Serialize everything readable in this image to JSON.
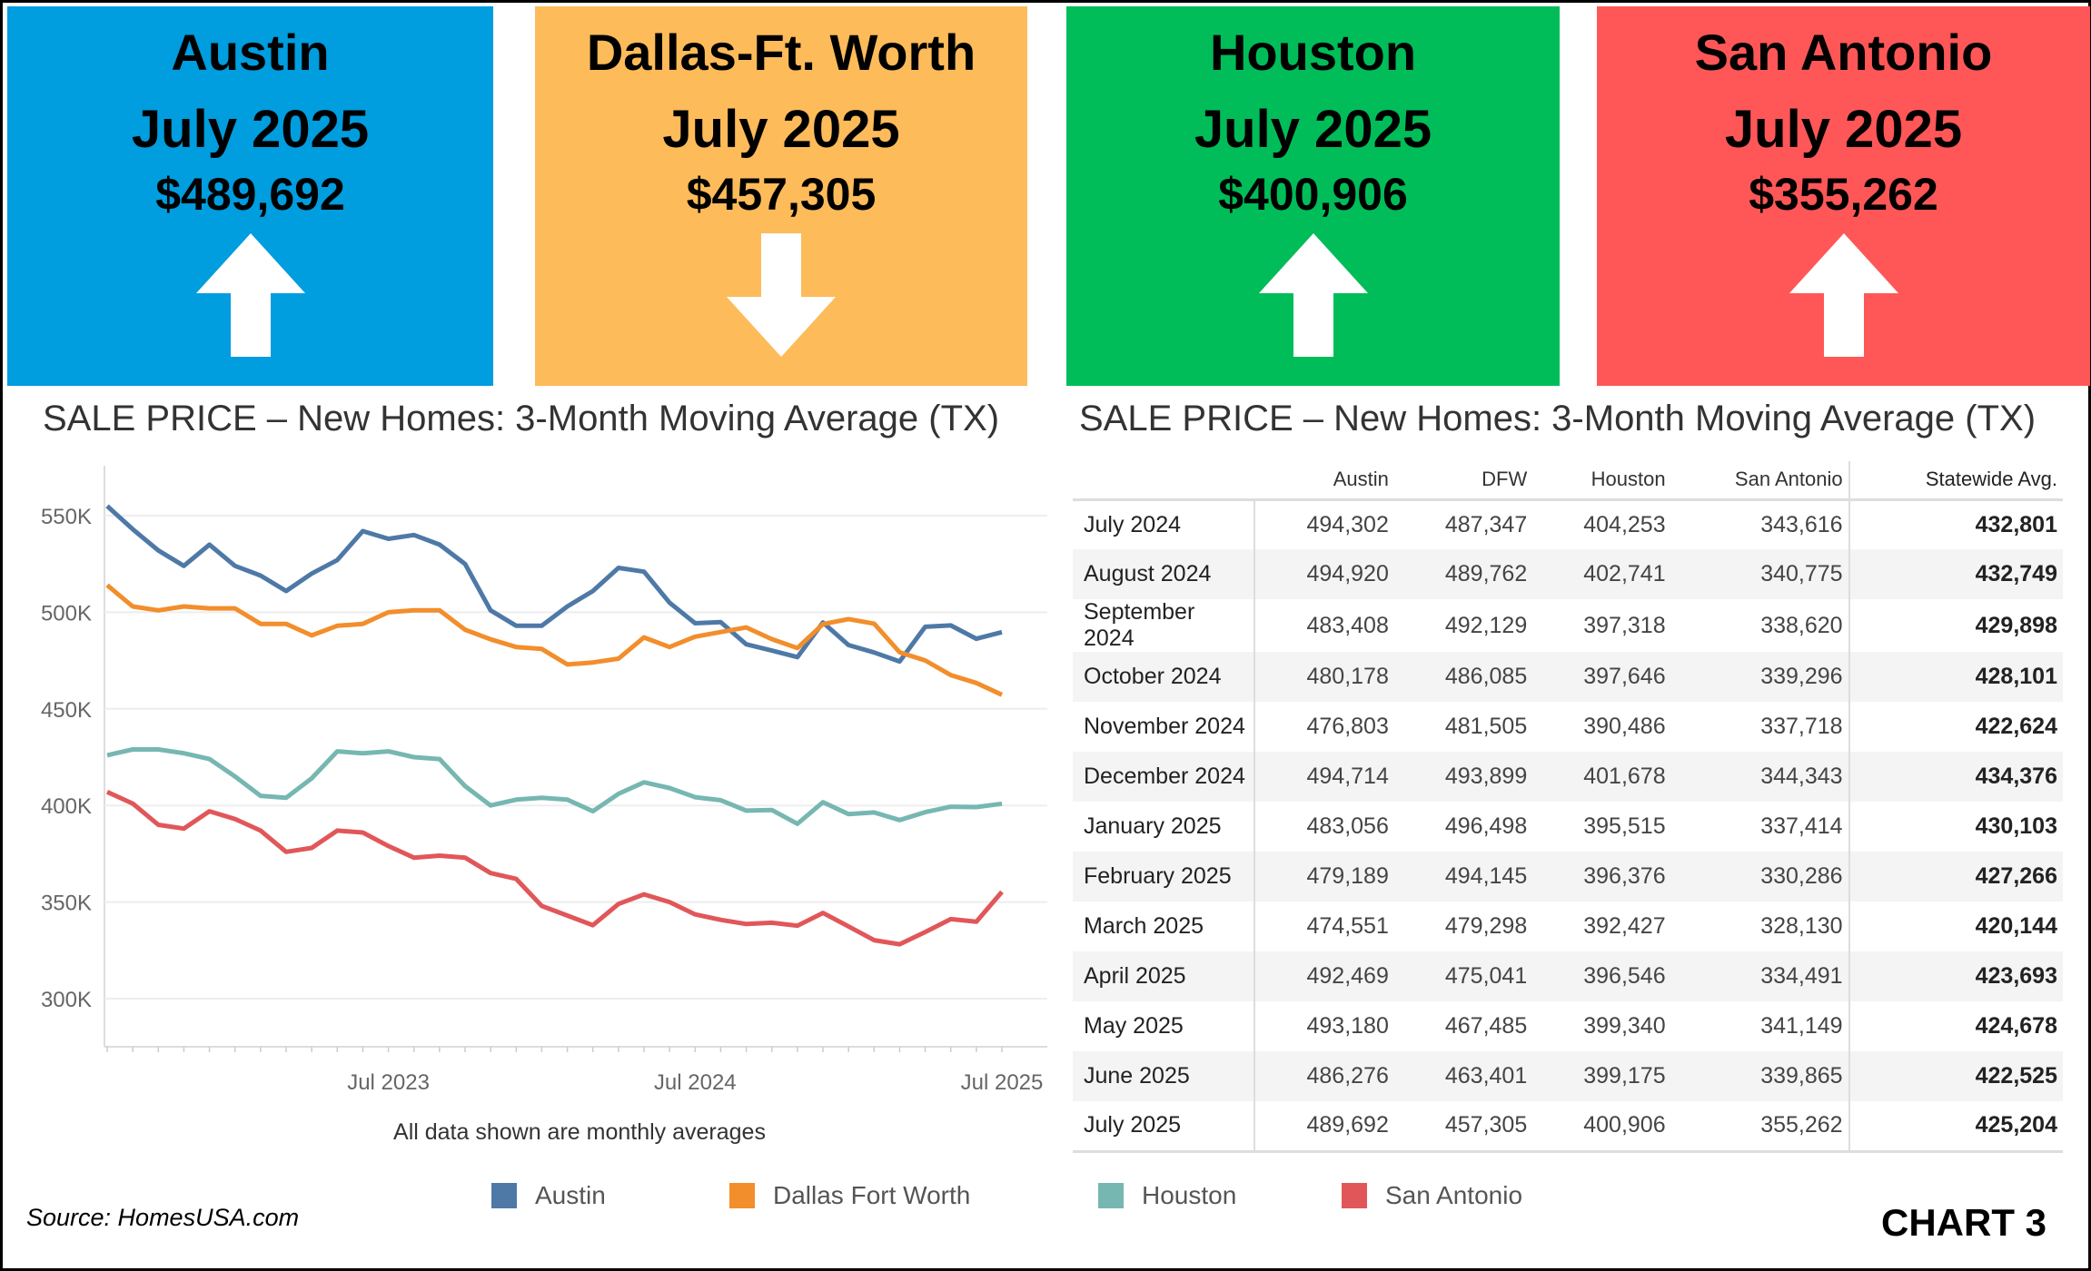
{
  "cards": [
    {
      "city": "Austin",
      "month": "July 2025",
      "price": "$489,692",
      "direction": "up",
      "color": "#009ddf"
    },
    {
      "city": "Dallas-Ft. Worth",
      "month": "July 2025",
      "price": "$457,305",
      "direction": "down",
      "color": "#fdbb5a"
    },
    {
      "city": "Houston",
      "month": "July 2025",
      "price": "$400,906",
      "direction": "up",
      "color": "#00bd59"
    },
    {
      "city": "San Antonio",
      "month": "July 2025",
      "price": "$355,262",
      "direction": "up",
      "color": "#ff5757"
    }
  ],
  "chart_title": "SALE PRICE – New Homes: 3-Month Moving Average (TX)",
  "table_title": "SALE PRICE – New Homes: 3-Month Moving Average (TX)",
  "chart_note": "All data shown are monthly averages",
  "chart_data": {
    "type": "line",
    "x_start": "Aug 2022",
    "x_end": "Jul 2025",
    "x_ticks": [
      "Jul 2023",
      "Jul 2024",
      "Jul 2025"
    ],
    "y_ticks": [
      "550K",
      "500K",
      "450K",
      "400K",
      "350K",
      "300K"
    ],
    "ylim": [
      275000,
      565000
    ],
    "grid": true,
    "legend": "bottom",
    "series": [
      {
        "name": "Austin",
        "color": "#4e79a7",
        "values": [
          555000,
          543000,
          532000,
          524000,
          535000,
          524000,
          519000,
          511000,
          520000,
          527000,
          542000,
          538000,
          540000,
          535000,
          525000,
          501000,
          493000,
          493000,
          503000,
          511000,
          523000,
          521000,
          505000,
          494302,
          494920,
          483408,
          480178,
          476803,
          494714,
          483056,
          479189,
          474551,
          492469,
          493180,
          486276,
          489692
        ]
      },
      {
        "name": "Dallas Fort Worth",
        "color": "#f28e2b",
        "values": [
          514000,
          503000,
          501000,
          503000,
          502000,
          502000,
          494000,
          494000,
          488000,
          493000,
          494000,
          500000,
          501000,
          501000,
          491000,
          486000,
          482000,
          481000,
          473000,
          474000,
          476000,
          487000,
          482000,
          487347,
          489762,
          492129,
          486085,
          481505,
          493899,
          496498,
          494145,
          479298,
          475041,
          467485,
          463401,
          457305
        ]
      },
      {
        "name": "Houston",
        "color": "#76b7b2",
        "values": [
          426000,
          429000,
          429000,
          427000,
          424000,
          415000,
          405000,
          404000,
          414000,
          428000,
          427000,
          428000,
          425000,
          424000,
          410000,
          400000,
          403000,
          404000,
          403000,
          397000,
          406000,
          412000,
          409000,
          404253,
          402741,
          397318,
          397646,
          390486,
          401678,
          395515,
          396376,
          392427,
          396546,
          399340,
          399175,
          400906
        ]
      },
      {
        "name": "San Antonio",
        "color": "#e15759",
        "values": [
          407000,
          401000,
          390000,
          388000,
          397000,
          393000,
          387000,
          376000,
          378000,
          387000,
          386000,
          379000,
          373000,
          374000,
          373000,
          365000,
          362000,
          348000,
          343000,
          338000,
          349000,
          354000,
          350000,
          343616,
          340775,
          338620,
          339296,
          337718,
          344343,
          337414,
          330286,
          328130,
          334491,
          341149,
          339865,
          355262
        ]
      }
    ]
  },
  "table": {
    "columns": [
      "",
      "Austin",
      "DFW",
      "Houston",
      "San Antonio",
      "Statewide Avg."
    ],
    "rows": [
      [
        "July 2024",
        "494,302",
        "487,347",
        "404,253",
        "343,616",
        "432,801"
      ],
      [
        "August 2024",
        "494,920",
        "489,762",
        "402,741",
        "340,775",
        "432,749"
      ],
      [
        "September 2024",
        "483,408",
        "492,129",
        "397,318",
        "338,620",
        "429,898"
      ],
      [
        "October 2024",
        "480,178",
        "486,085",
        "397,646",
        "339,296",
        "428,101"
      ],
      [
        "November 2024",
        "476,803",
        "481,505",
        "390,486",
        "337,718",
        "422,624"
      ],
      [
        "December 2024",
        "494,714",
        "493,899",
        "401,678",
        "344,343",
        "434,376"
      ],
      [
        "January 2025",
        "483,056",
        "496,498",
        "395,515",
        "337,414",
        "430,103"
      ],
      [
        "February 2025",
        "479,189",
        "494,145",
        "396,376",
        "330,286",
        "427,266"
      ],
      [
        "March 2025",
        "474,551",
        "479,298",
        "392,427",
        "328,130",
        "420,144"
      ],
      [
        "April 2025",
        "492,469",
        "475,041",
        "396,546",
        "334,491",
        "423,693"
      ],
      [
        "May 2025",
        "493,180",
        "467,485",
        "399,340",
        "341,149",
        "424,678"
      ],
      [
        "June 2025",
        "486,276",
        "463,401",
        "399,175",
        "339,865",
        "422,525"
      ],
      [
        "July 2025",
        "489,692",
        "457,305",
        "400,906",
        "355,262",
        "425,204"
      ]
    ]
  },
  "legend": [
    {
      "label": "Austin",
      "color": "#4e79a7"
    },
    {
      "label": "Dallas Fort Worth",
      "color": "#f28e2b"
    },
    {
      "label": "Houston",
      "color": "#76b7b2"
    },
    {
      "label": "San Antonio",
      "color": "#e15759"
    }
  ],
  "source": "Source: HomesUSA.com",
  "chart_label": "CHART 3"
}
